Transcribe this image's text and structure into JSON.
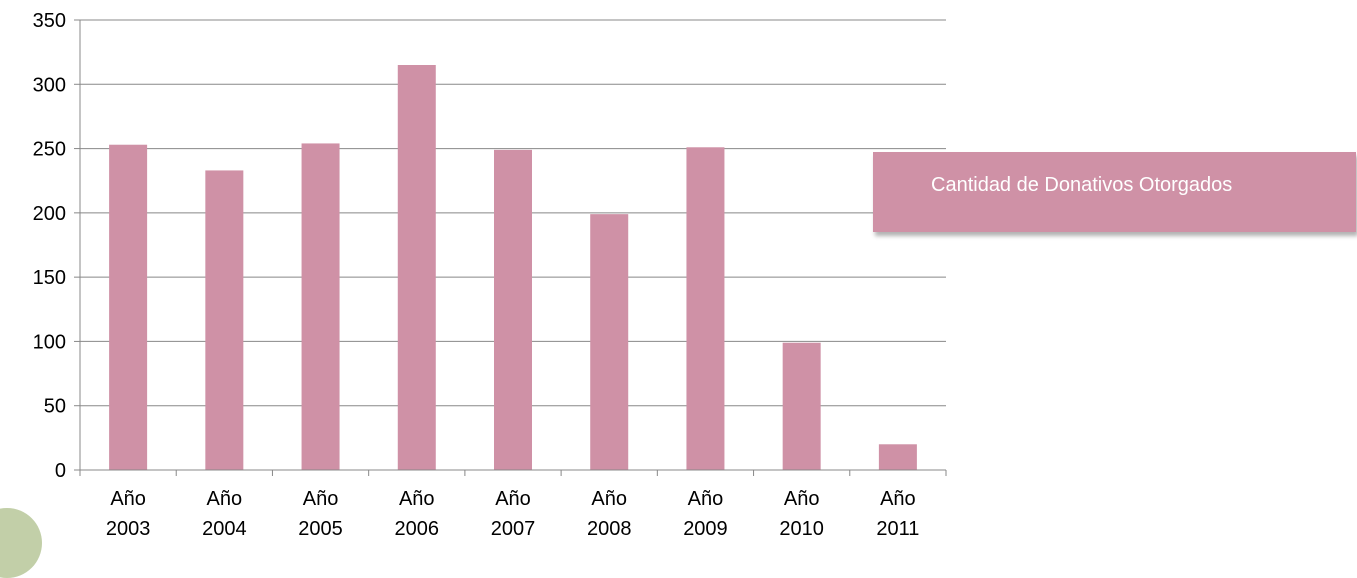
{
  "chart_data": {
    "type": "bar",
    "categories": [
      [
        "Año",
        "2003"
      ],
      [
        "Año",
        "2004"
      ],
      [
        "Año",
        "2005"
      ],
      [
        "Año",
        "2006"
      ],
      [
        "Año",
        "2007"
      ],
      [
        "Año",
        "2008"
      ],
      [
        "Año",
        "2009"
      ],
      [
        "Año",
        "2010"
      ],
      [
        "Año",
        "2011"
      ]
    ],
    "series": [
      {
        "name": "Cantidad de Donativos Otorgados",
        "values": [
          253,
          233,
          254,
          315,
          249,
          199,
          251,
          99,
          20
        ]
      }
    ],
    "ylim": [
      0,
      350
    ],
    "yticks": [
      0,
      50,
      100,
      150,
      200,
      250,
      300,
      350
    ],
    "grid": true,
    "legend": "right",
    "bar_color": "#cf91a6"
  }
}
